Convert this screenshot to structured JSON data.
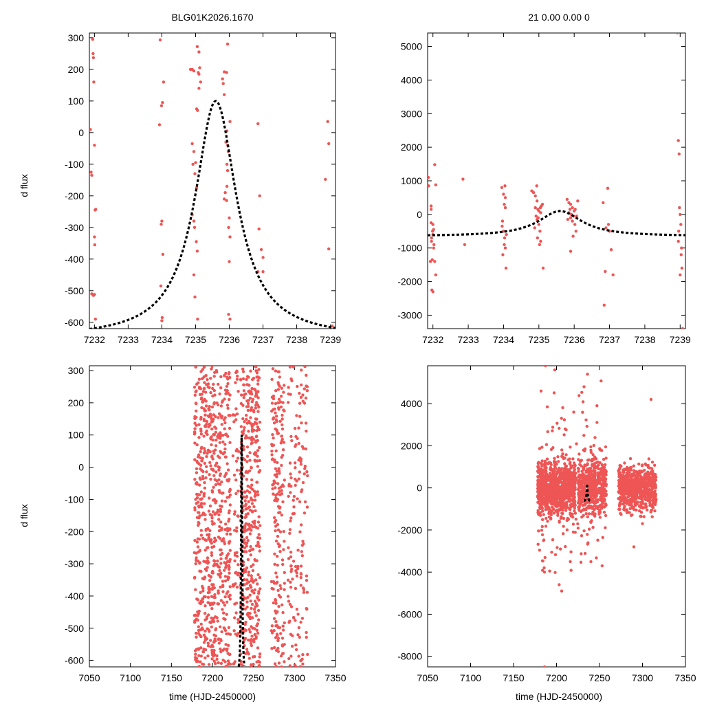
{
  "figure": {
    "title_left": "BLG01K2026.1670",
    "title_right": "21  0.00  0.00  0",
    "ylabel": "d flux",
    "xlabel": "time (HJD-2450000)"
  },
  "colors": {
    "points": "#EE5555",
    "model": "#000000",
    "axes": "#000000"
  },
  "chart_data": [
    {
      "type": "scatter",
      "panel": "top-left",
      "title": "BLG01K2026.1670",
      "xlabel": "",
      "ylabel": "d flux",
      "xlim": [
        7231.85,
        7239.15
      ],
      "ylim": [
        -620,
        315
      ],
      "xticks": [
        7232,
        7233,
        7234,
        7235,
        7236,
        7237,
        7238,
        7239
      ],
      "yticks": [
        300,
        200,
        100,
        0,
        -100,
        -200,
        -300,
        -400,
        -500,
        -600
      ],
      "model": {
        "t0": 7235.6,
        "peak": 100,
        "base": -650,
        "tau": 0.75
      },
      "points": [
        [
          7231.88,
          10
        ],
        [
          7231.9,
          -125
        ],
        [
          7231.92,
          -135
        ],
        [
          7231.95,
          295
        ],
        [
          7231.96,
          250
        ],
        [
          7231.97,
          237
        ],
        [
          7231.98,
          160
        ],
        [
          7232.0,
          -40
        ],
        [
          7232.02,
          -245
        ],
        [
          7232.04,
          -243
        ],
        [
          7232.0,
          -330
        ],
        [
          7232.01,
          -355
        ],
        [
          7231.92,
          -510
        ],
        [
          7231.97,
          -515
        ],
        [
          7232.0,
          -512
        ],
        [
          7232.03,
          -590
        ],
        [
          7233.95,
          293
        ],
        [
          7234.05,
          160
        ],
        [
          7234.02,
          95
        ],
        [
          7233.99,
          85
        ],
        [
          7233.93,
          25
        ],
        [
          7234.0,
          -280
        ],
        [
          7233.98,
          -290
        ],
        [
          7234.03,
          -385
        ],
        [
          7233.97,
          -485
        ],
        [
          7234.01,
          -585
        ],
        [
          7234.0,
          -595
        ],
        [
          7234.85,
          200
        ],
        [
          7234.9,
          200
        ],
        [
          7234.95,
          195
        ],
        [
          7235.05,
          272
        ],
        [
          7235.1,
          255
        ],
        [
          7235.12,
          205
        ],
        [
          7235.08,
          190
        ],
        [
          7235.1,
          185
        ],
        [
          7235.15,
          160
        ],
        [
          7235.1,
          140
        ],
        [
          7235.03,
          75
        ],
        [
          7235.06,
          70
        ],
        [
          7234.9,
          -35
        ],
        [
          7234.95,
          -60
        ],
        [
          7234.92,
          -100
        ],
        [
          7235.0,
          -95
        ],
        [
          7234.98,
          -130
        ],
        [
          7235.03,
          -175
        ],
        [
          7234.9,
          -260
        ],
        [
          7234.95,
          -280
        ],
        [
          7234.97,
          -300
        ],
        [
          7235.02,
          -345
        ],
        [
          7235.05,
          -375
        ],
        [
          7234.95,
          -450
        ],
        [
          7234.98,
          -520
        ],
        [
          7235.06,
          -590
        ],
        [
          7235.85,
          192
        ],
        [
          7235.92,
          190
        ],
        [
          7235.95,
          280
        ],
        [
          7235.8,
          170
        ],
        [
          7235.82,
          155
        ],
        [
          7235.85,
          120
        ],
        [
          7236.02,
          35
        ],
        [
          7235.93,
          5
        ],
        [
          7235.9,
          -30
        ],
        [
          7235.95,
          -40
        ],
        [
          7235.97,
          -60
        ],
        [
          7235.93,
          -100
        ],
        [
          7235.95,
          -120
        ],
        [
          7235.93,
          -170
        ],
        [
          7235.88,
          -190
        ],
        [
          7235.85,
          -210
        ],
        [
          7235.92,
          -215
        ],
        [
          7236.0,
          -270
        ],
        [
          7235.98,
          -300
        ],
        [
          7236.02,
          -330
        ],
        [
          7236.0,
          -408
        ],
        [
          7235.98,
          -575
        ],
        [
          7236.02,
          -590
        ],
        [
          7236.85,
          28
        ],
        [
          7236.9,
          -200
        ],
        [
          7236.88,
          -305
        ],
        [
          7236.95,
          -370
        ],
        [
          7237.0,
          -395
        ],
        [
          7236.85,
          -440
        ],
        [
          7237.0,
          -440
        ],
        [
          7238.85,
          -148
        ],
        [
          7238.92,
          35
        ],
        [
          7238.95,
          -35
        ],
        [
          7238.95,
          -368
        ],
        [
          7239.05,
          -612
        ]
      ]
    },
    {
      "type": "scatter",
      "panel": "top-right",
      "title": "21  0.00  0.00  0",
      "xlabel": "",
      "ylabel": "",
      "xlim": [
        7231.85,
        7239.15
      ],
      "ylim": [
        -3400,
        5400
      ],
      "xticks": [
        7232,
        7233,
        7234,
        7235,
        7236,
        7237,
        7238,
        7239
      ],
      "yticks": [
        5000,
        4000,
        3000,
        2000,
        1000,
        0,
        -1000,
        -2000,
        -3000
      ],
      "model": {
        "t0": 7235.6,
        "peak": 100,
        "base": -650,
        "tau": 0.75
      },
      "points": [
        [
          7231.87,
          1100
        ],
        [
          7231.88,
          850
        ],
        [
          7231.93,
          -1400
        ],
        [
          7231.95,
          -250
        ],
        [
          7231.96,
          -800
        ],
        [
          7231.98,
          -1350
        ],
        [
          7231.95,
          250
        ],
        [
          7231.97,
          -2250
        ],
        [
          7232.0,
          -2300
        ],
        [
          7232.05,
          1480
        ],
        [
          7232.08,
          880
        ],
        [
          7232.0,
          -600
        ],
        [
          7231.99,
          -500
        ],
        [
          7232.02,
          -1000
        ],
        [
          7232.05,
          -1400
        ],
        [
          7232.08,
          -1800
        ],
        [
          7232.03,
          -900
        ],
        [
          7231.96,
          -700
        ],
        [
          7231.95,
          150
        ],
        [
          7232.0,
          -300
        ],
        [
          7232.02,
          -450
        ],
        [
          7232.85,
          1050
        ],
        [
          7232.9,
          -900
        ],
        [
          7233.95,
          800
        ],
        [
          7234.0,
          600
        ],
        [
          7234.02,
          300
        ],
        [
          7234.05,
          500
        ],
        [
          7233.97,
          -200
        ],
        [
          7234.0,
          -500
        ],
        [
          7234.03,
          -700
        ],
        [
          7234.05,
          -1000
        ],
        [
          7233.98,
          -1200
        ],
        [
          7234.02,
          -900
        ],
        [
          7234.07,
          -1600
        ],
        [
          7234.05,
          200
        ],
        [
          7233.96,
          -350
        ],
        [
          7234.04,
          850
        ],
        [
          7234.08,
          -600
        ],
        [
          7234.8,
          700
        ],
        [
          7234.85,
          650
        ],
        [
          7234.9,
          550
        ],
        [
          7234.95,
          400
        ],
        [
          7234.9,
          200
        ],
        [
          7234.97,
          150
        ],
        [
          7235.0,
          100
        ],
        [
          7235.05,
          50
        ],
        [
          7234.92,
          -50
        ],
        [
          7234.95,
          -150
        ],
        [
          7235.0,
          -300
        ],
        [
          7234.88,
          -400
        ],
        [
          7234.96,
          -700
        ],
        [
          7235.02,
          -900
        ],
        [
          7235.05,
          -800
        ],
        [
          7235.1,
          300
        ],
        [
          7235.12,
          -1600
        ],
        [
          7234.94,
          850
        ],
        [
          7235.07,
          250
        ],
        [
          7235.03,
          -500
        ],
        [
          7234.98,
          -100
        ],
        [
          7235.04,
          200
        ],
        [
          7235.8,
          450
        ],
        [
          7235.85,
          350
        ],
        [
          7235.9,
          300
        ],
        [
          7235.95,
          200
        ],
        [
          7236.0,
          100
        ],
        [
          7235.85,
          50
        ],
        [
          7235.9,
          -100
        ],
        [
          7235.95,
          -200
        ],
        [
          7236.02,
          -300
        ],
        [
          7236.05,
          -500
        ],
        [
          7235.88,
          150
        ],
        [
          7235.92,
          0
        ],
        [
          7235.98,
          -50
        ],
        [
          7236.03,
          150
        ],
        [
          7236.1,
          400
        ],
        [
          7235.82,
          -150
        ],
        [
          7235.97,
          -650
        ],
        [
          7236.07,
          -50
        ],
        [
          7235.9,
          -1100
        ],
        [
          7236.82,
          350
        ],
        [
          7236.88,
          -1700
        ],
        [
          7236.85,
          -2700
        ],
        [
          7236.95,
          780
        ],
        [
          7236.9,
          -400
        ],
        [
          7237.0,
          -500
        ],
        [
          7237.05,
          -1050
        ],
        [
          7237.1,
          -1800
        ],
        [
          7236.97,
          -300
        ],
        [
          7238.92,
          5400
        ],
        [
          7238.95,
          2200
        ],
        [
          7238.97,
          1800
        ],
        [
          7238.98,
          200
        ],
        [
          7239.0,
          0
        ],
        [
          7239.02,
          -300
        ],
        [
          7238.95,
          -800
        ],
        [
          7239.03,
          -1200
        ],
        [
          7239.05,
          -1600
        ],
        [
          7239.0,
          -1800
        ],
        [
          7239.07,
          -3400
        ],
        [
          7238.96,
          -500
        ],
        [
          7239.04,
          -1000
        ]
      ]
    },
    {
      "type": "scatter",
      "panel": "bottom-left",
      "title": "",
      "xlabel": "time (HJD-2450000)",
      "ylabel": "d flux",
      "xlim": [
        7050,
        7350
      ],
      "ylim": [
        -620,
        315
      ],
      "xticks": [
        7050,
        7100,
        7150,
        7200,
        7250,
        7300,
        7350
      ],
      "yticks": [
        300,
        200,
        100,
        0,
        -100,
        -200,
        -300,
        -400,
        -500,
        -600
      ],
      "model": {
        "t0": 7235.6,
        "peak": 100,
        "base": -650,
        "tau": 0.75
      },
      "point_groups": [
        {
          "x": [
            7178,
            7222
          ],
          "y": [
            -620,
            315
          ],
          "count": 700
        },
        {
          "x": [
            7225,
            7232
          ],
          "y": [
            -620,
            315
          ],
          "count": 60
        },
        {
          "x": [
            7234,
            7258
          ],
          "y": [
            -620,
            315
          ],
          "count": 420
        },
        {
          "x": [
            7272,
            7288
          ],
          "y": [
            -620,
            315
          ],
          "count": 200
        },
        {
          "x": [
            7292,
            7316
          ],
          "y": [
            -620,
            315
          ],
          "count": 160
        }
      ]
    },
    {
      "type": "scatter",
      "panel": "bottom-right",
      "title": "",
      "xlabel": "time (HJD-2450000)",
      "ylabel": "",
      "xlim": [
        7050,
        7350
      ],
      "ylim": [
        -8500,
        5800
      ],
      "xticks": [
        7050,
        7100,
        7150,
        7200,
        7250,
        7300,
        7350
      ],
      "yticks": [
        4000,
        2000,
        0,
        -2000,
        -4000,
        -6000,
        -8000
      ],
      "model": {
        "t0": 7235.6,
        "peak": 100,
        "base": -650,
        "tau": 0.75
      },
      "point_groups": [
        {
          "x": [
            7178,
            7222
          ],
          "y": [
            -900,
            900
          ],
          "count": 900
        },
        {
          "x": [
            7225,
            7258
          ],
          "y": [
            -900,
            900
          ],
          "count": 500
        },
        {
          "x": [
            7272,
            7316
          ],
          "y": [
            -800,
            800
          ],
          "count": 700
        },
        {
          "x": [
            7178,
            7258
          ],
          "y": [
            -3000,
            3000
          ],
          "count": 200
        }
      ],
      "outliers": [
        [
          7182,
          4600
        ],
        [
          7187,
          5800
        ],
        [
          7198,
          5600
        ],
        [
          7210,
          2800
        ],
        [
          7220,
          3600
        ],
        [
          7232,
          4800
        ],
        [
          7236,
          5400
        ],
        [
          7247,
          3900
        ],
        [
          7310,
          4200
        ],
        [
          7186,
          -4000
        ],
        [
          7203,
          -4600
        ],
        [
          7206,
          -4900
        ],
        [
          7216,
          -3500
        ],
        [
          7240,
          -3500
        ],
        [
          7253,
          -3700
        ],
        [
          7186,
          -8500
        ],
        [
          7290,
          -2800
        ],
        [
          7300,
          -1700
        ]
      ]
    }
  ]
}
